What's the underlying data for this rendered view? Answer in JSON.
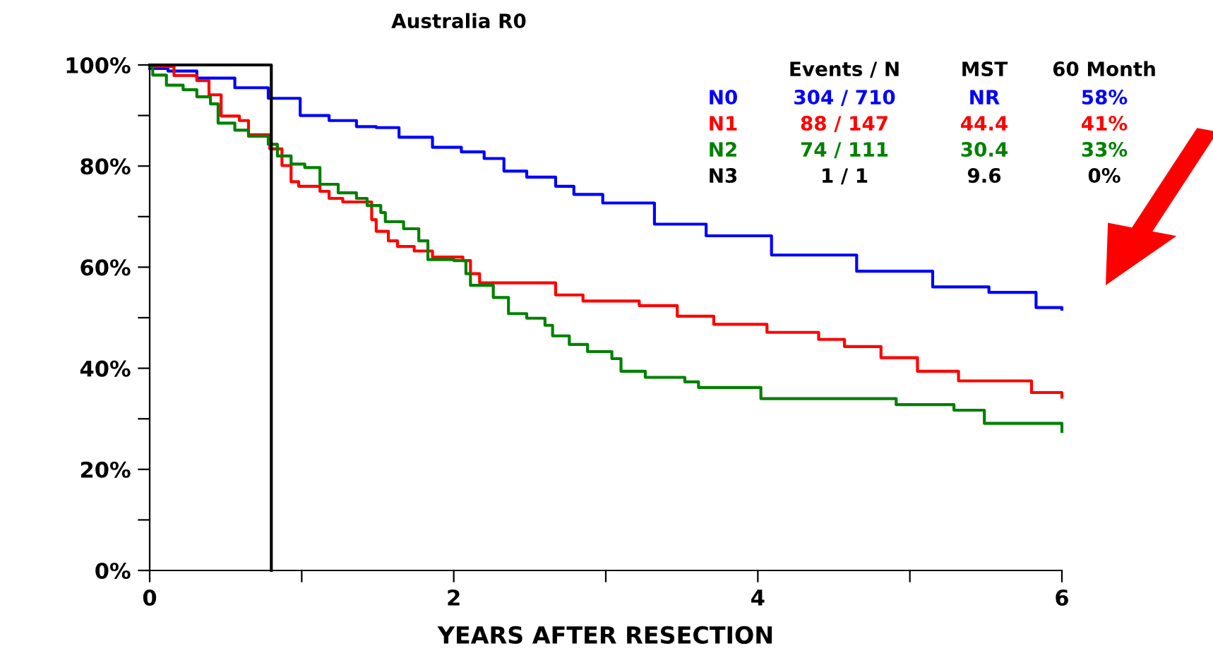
{
  "chart_data": {
    "type": "step",
    "title": "Australia R0",
    "xlabel": "YEARS AFTER RESECTION",
    "xlim": [
      0,
      6
    ],
    "xticks": [
      0,
      {
        "value": 1,
        "label": null
      },
      2,
      {
        "value": 3,
        "label": null
      },
      4,
      {
        "value": 5,
        "label": null
      },
      6
    ],
    "ylim": [
      0,
      100
    ],
    "yticks": [
      {
        "value": 0,
        "label": "0%"
      },
      {
        "value": 10,
        "label": null
      },
      {
        "value": 20,
        "label": "20%"
      },
      {
        "value": 30,
        "label": null
      },
      {
        "value": 40,
        "label": "40%"
      },
      {
        "value": 50,
        "label": null
      },
      {
        "value": 60,
        "label": "60%"
      },
      {
        "value": 70,
        "label": null
      },
      {
        "value": 80,
        "label": "80%"
      },
      {
        "value": 90,
        "label": null
      },
      {
        "value": 100,
        "label": "100%"
      }
    ],
    "grid": false,
    "series": [
      {
        "name": "N0",
        "color": "#0000ff",
        "x": [
          0,
          0.12,
          0.31,
          0.56,
          0.78,
          0.99,
          1.18,
          1.36,
          1.49,
          1.64,
          1.86,
          2.05,
          2.2,
          2.33,
          2.48,
          2.67,
          2.79,
          2.98,
          3.32,
          3.66,
          4.09,
          4.65,
          5.15,
          5.52,
          5.83,
          6.0
        ],
        "values": [
          99.3,
          98.8,
          97.4,
          95.5,
          93.4,
          90,
          89,
          87.8,
          87.6,
          85.7,
          83.7,
          82.8,
          81.5,
          79,
          77.8,
          76,
          74.4,
          72.7,
          68.5,
          66.2,
          62.4,
          59.2,
          56.1,
          55.0,
          52.0,
          51.7
        ]
      },
      {
        "name": "N1",
        "color": "#ff0000",
        "x": [
          0,
          0.16,
          0.31,
          0.39,
          0.47,
          0.59,
          0.65,
          0.79,
          0.87,
          0.93,
          0.98,
          1.12,
          1.18,
          1.27,
          1.46,
          1.49,
          1.57,
          1.63,
          1.74,
          1.86,
          2.06,
          2.11,
          2.17,
          2.54,
          2.67,
          2.85,
          3.22,
          3.47,
          3.71,
          4.06,
          4.4,
          4.57,
          4.81,
          5.05,
          5.32,
          5.8,
          6.0
        ],
        "values": [
          99.7,
          97.9,
          96.9,
          94.1,
          89.9,
          89,
          86.2,
          83.4,
          80.1,
          76.9,
          76,
          75,
          73.6,
          72.9,
          69.4,
          67.1,
          65.2,
          64.1,
          63.2,
          62,
          61.3,
          58.7,
          56.9,
          56.9,
          54.5,
          53.3,
          52.4,
          50.3,
          48.7,
          47.1,
          45.7,
          44.3,
          42.1,
          39.4,
          37.5,
          35.2,
          34.3
        ]
      },
      {
        "name": "N2",
        "color": "#008000",
        "x": [
          0,
          0.02,
          0.11,
          0.22,
          0.31,
          0.4,
          0.45,
          0.56,
          0.65,
          0.78,
          0.84,
          0.93,
          1.02,
          1.12,
          1.24,
          1.36,
          1.43,
          1.52,
          1.55,
          1.67,
          1.77,
          1.83,
          2.0,
          2.08,
          2.11,
          2.26,
          2.36,
          2.48,
          2.6,
          2.65,
          2.76,
          2.88,
          3.04,
          3.1,
          3.26,
          3.52,
          3.61,
          4.02,
          4.91,
          5.29,
          5.49,
          5.97,
          6.0
        ],
        "values": [
          99.7,
          98,
          96,
          95.1,
          93.7,
          92.3,
          88.5,
          87.1,
          85.9,
          84.3,
          82,
          80.4,
          79.7,
          76.4,
          74.7,
          73.6,
          72.2,
          70.8,
          69,
          67.6,
          65.2,
          61.5,
          61.3,
          58.7,
          56.4,
          54,
          50.8,
          49.9,
          48.5,
          46.4,
          44.7,
          43.3,
          41.9,
          39.4,
          38.2,
          37.3,
          36.2,
          34.0,
          32.8,
          31.7,
          29.1,
          29.1,
          27.5
        ]
      },
      {
        "name": "N3",
        "color": "#000000",
        "x": [
          0,
          0.8
        ],
        "values": [
          100,
          0
        ]
      }
    ],
    "annotations": [
      "Events / N",
      "MST",
      "60 Month",
      "304 / 710",
      "NR",
      "58%",
      "88 / 147",
      "44.4",
      "41%",
      "74 / 111",
      "30.4",
      "33%",
      "1 / 1",
      "9.6",
      "0%"
    ]
  }
}
